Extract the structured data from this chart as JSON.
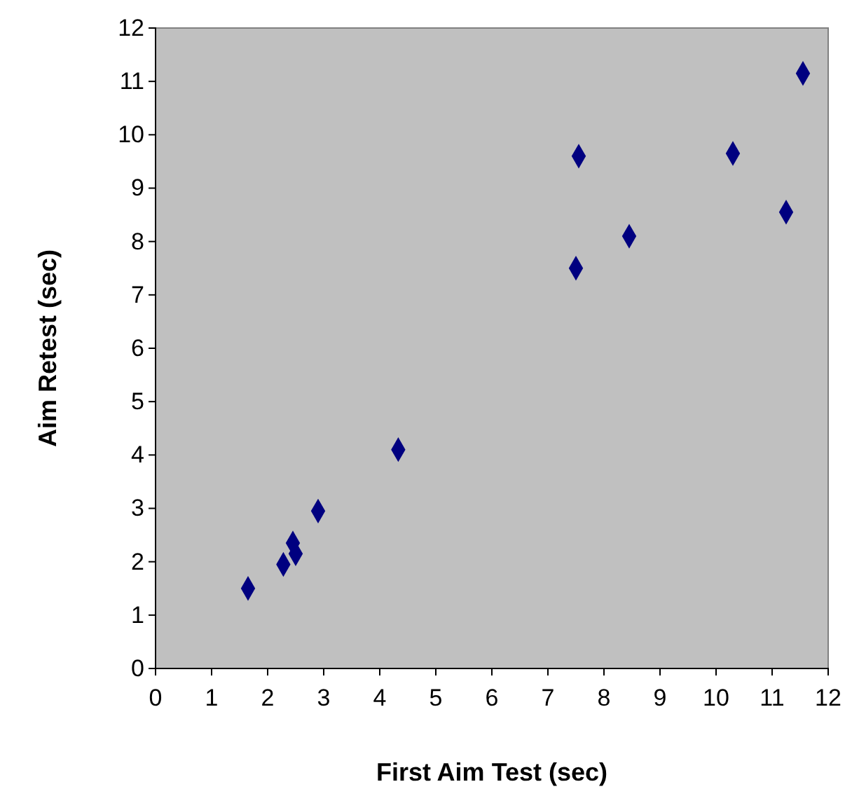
{
  "chart_data": {
    "type": "scatter",
    "xlabel": "First Aim Test (sec)",
    "ylabel": "Aim Retest (sec)",
    "x": [
      1.65,
      2.28,
      2.45,
      2.5,
      2.9,
      4.33,
      7.5,
      7.55,
      8.45,
      10.3,
      11.25,
      11.55
    ],
    "series": [
      {
        "color": "#000080",
        "values": [
          1.5,
          1.95,
          2.35,
          2.15,
          2.95,
          4.1,
          7.5,
          9.6,
          8.1,
          9.65,
          8.55,
          11.15
        ]
      }
    ],
    "xlim": [
      0,
      12
    ],
    "xticks": [
      0,
      1,
      2,
      3,
      4,
      5,
      6,
      7,
      8,
      9,
      10,
      11,
      12
    ],
    "ylim": [
      0,
      12
    ],
    "yticks": [
      0,
      1,
      2,
      3,
      4,
      5,
      6,
      7,
      8,
      9,
      10,
      11,
      12
    ],
    "grid": false,
    "marker": "diamond"
  }
}
